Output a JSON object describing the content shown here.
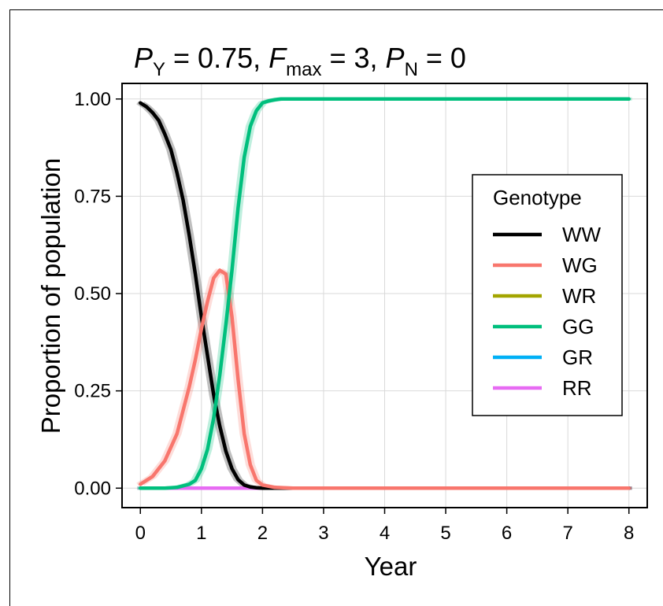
{
  "chart_data": {
    "type": "line",
    "title": {
      "p_y_symbol": "P",
      "p_y_sub": "Y",
      "p_y_value": " = 0.75, ",
      "f_symbol": "F",
      "f_sub": "max",
      "f_value": " = 3, ",
      "p_n_symbol": "P",
      "p_n_sub": "N",
      "p_n_value": " = 0"
    },
    "xlabel": "Year",
    "ylabel": "Proportion of population",
    "xlim": [
      -0.3,
      8.3
    ],
    "ylim": [
      -0.05,
      1.04
    ],
    "x_ticks": [
      0,
      1,
      2,
      3,
      4,
      5,
      6,
      7,
      8
    ],
    "x_tick_labels": [
      "0",
      "1",
      "2",
      "3",
      "4",
      "5",
      "6",
      "7",
      "8"
    ],
    "y_ticks": [
      0,
      0.25,
      0.5,
      0.75,
      1.0
    ],
    "y_tick_labels": [
      "0.00",
      "0.25",
      "0.50",
      "0.75",
      "1.00"
    ],
    "grid": true,
    "legend": {
      "title": "Genotype",
      "placement": "right",
      "entries": [
        "WW",
        "WG",
        "WR",
        "GG",
        "GR",
        "RR"
      ]
    },
    "series": [
      {
        "name": "WW",
        "color": "#000000",
        "x": [
          0,
          0.1,
          0.2,
          0.3,
          0.4,
          0.5,
          0.6,
          0.7,
          0.8,
          0.9,
          1.0,
          1.1,
          1.2,
          1.3,
          1.4,
          1.5,
          1.6,
          1.7,
          1.8,
          1.9,
          2.0,
          2.2,
          2.5,
          3,
          4,
          5,
          6,
          7,
          8
        ],
        "y": [
          0.99,
          0.98,
          0.965,
          0.945,
          0.91,
          0.87,
          0.81,
          0.74,
          0.65,
          0.55,
          0.44,
          0.34,
          0.24,
          0.16,
          0.095,
          0.05,
          0.022,
          0.008,
          0.003,
          0.001,
          0,
          0,
          0,
          0,
          0,
          0,
          0,
          0,
          0
        ]
      },
      {
        "name": "WG",
        "color": "#f8766d",
        "x": [
          0,
          0.2,
          0.4,
          0.6,
          0.8,
          0.9,
          1.0,
          1.1,
          1.2,
          1.3,
          1.4,
          1.5,
          1.6,
          1.7,
          1.8,
          1.9,
          2.0,
          2.2,
          2.5,
          3,
          4,
          5,
          6,
          7,
          8
        ],
        "y": [
          0.01,
          0.03,
          0.07,
          0.14,
          0.26,
          0.33,
          0.41,
          0.48,
          0.54,
          0.56,
          0.55,
          0.44,
          0.28,
          0.14,
          0.06,
          0.02,
          0.008,
          0.002,
          0,
          0,
          0,
          0,
          0,
          0,
          0
        ]
      },
      {
        "name": "WR",
        "color": "#a3a500",
        "x": [
          0,
          8
        ],
        "y": [
          0,
          0
        ]
      },
      {
        "name": "GG",
        "color": "#00bf7d",
        "x": [
          0,
          0.4,
          0.6,
          0.8,
          0.9,
          1.0,
          1.1,
          1.2,
          1.3,
          1.4,
          1.5,
          1.6,
          1.7,
          1.8,
          1.9,
          2.0,
          2.1,
          2.2,
          2.3,
          2.5,
          3,
          4,
          5,
          6,
          7,
          8
        ],
        "y": [
          0,
          0,
          0.002,
          0.01,
          0.02,
          0.05,
          0.1,
          0.18,
          0.29,
          0.42,
          0.56,
          0.72,
          0.85,
          0.93,
          0.97,
          0.99,
          0.995,
          0.998,
          1.0,
          1.0,
          1.0,
          1.0,
          1.0,
          1.0,
          1.0,
          1.0
        ]
      },
      {
        "name": "GR",
        "color": "#00b0f6",
        "x": [
          0,
          8
        ],
        "y": [
          0,
          0
        ]
      },
      {
        "name": "RR",
        "color": "#e76bf3",
        "x": [
          0,
          8
        ],
        "y": [
          0,
          0
        ]
      }
    ]
  }
}
